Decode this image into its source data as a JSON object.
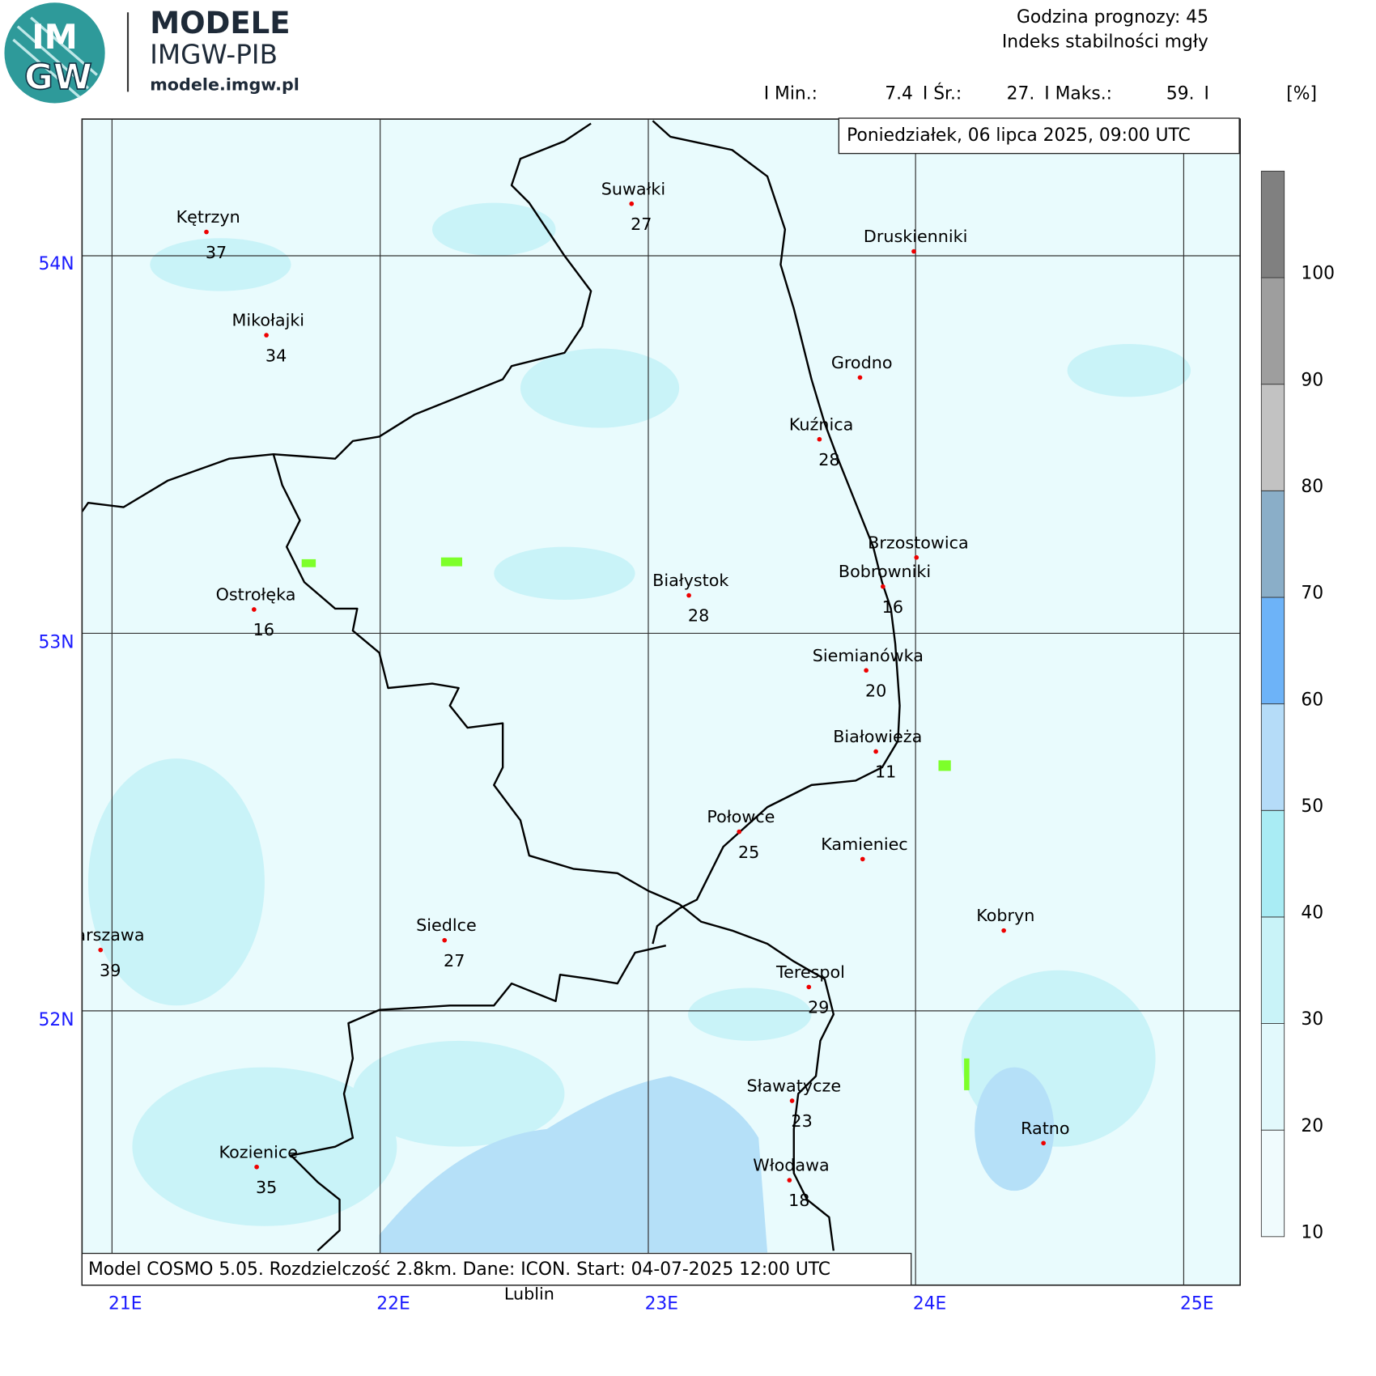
{
  "logo": {
    "title": "MODELE",
    "subtitle": "IMGW-PIB",
    "url": "modele.imgw.pl",
    "mark_top": "IM",
    "mark_bottom": "GW"
  },
  "header": {
    "forecast_hour": "Godzina prognozy: 45",
    "product": "Indeks stabilności mgły",
    "stats": [
      "I Min.:",
      "7.4",
      "I Śr.:",
      "27.",
      "I Maks.:",
      "59.",
      "I"
    ],
    "unit": "[%]"
  },
  "date": "Poniedziałek, 06 lipca 2025, 09:00 UTC",
  "footer": "Model COSMO 5.05. Rozdzielczość 2.8km. Dane: ICON. Start: 04-07-2025 12:00 UTC",
  "latitudes": [
    "54N",
    "53N",
    "52N"
  ],
  "longitudes": [
    "21E",
    "22E",
    "23E",
    "24E",
    "25E"
  ],
  "colorbar": [
    10,
    20,
    30,
    40,
    50,
    60,
    70,
    80,
    90,
    100
  ],
  "cities": [
    {
      "name": "Kętrzyn",
      "value": "37"
    },
    {
      "name": "Suwałki",
      "value": "27"
    },
    {
      "name": "Druskienniki"
    },
    {
      "name": "Mikołajki",
      "value": "34"
    },
    {
      "name": "Grodno"
    },
    {
      "name": "Kuźnica",
      "value": "28"
    },
    {
      "name": "Brzostowica"
    },
    {
      "name": "Bobrowniki",
      "value": "16"
    },
    {
      "name": "Białystok",
      "value": "28"
    },
    {
      "name": "Ostrołęka",
      "value": "16"
    },
    {
      "name": "Siemianówka",
      "value": "20"
    },
    {
      "name": "Białowieża",
      "value": "11"
    },
    {
      "name": "Połowce",
      "value": "25"
    },
    {
      "name": "Kamieniec"
    },
    {
      "name": "Kobryn"
    },
    {
      "name": "Warszawa",
      "value": "39"
    },
    {
      "name": "Siedlce",
      "value": "27"
    },
    {
      "name": "Terespol",
      "value": "29"
    },
    {
      "name": "Sławatycze",
      "value": "23"
    },
    {
      "name": "Ratno"
    },
    {
      "name": "Kozienice",
      "value": "35"
    },
    {
      "name": "Włodawa",
      "value": "18"
    },
    {
      "name": "Lublin"
    }
  ]
}
